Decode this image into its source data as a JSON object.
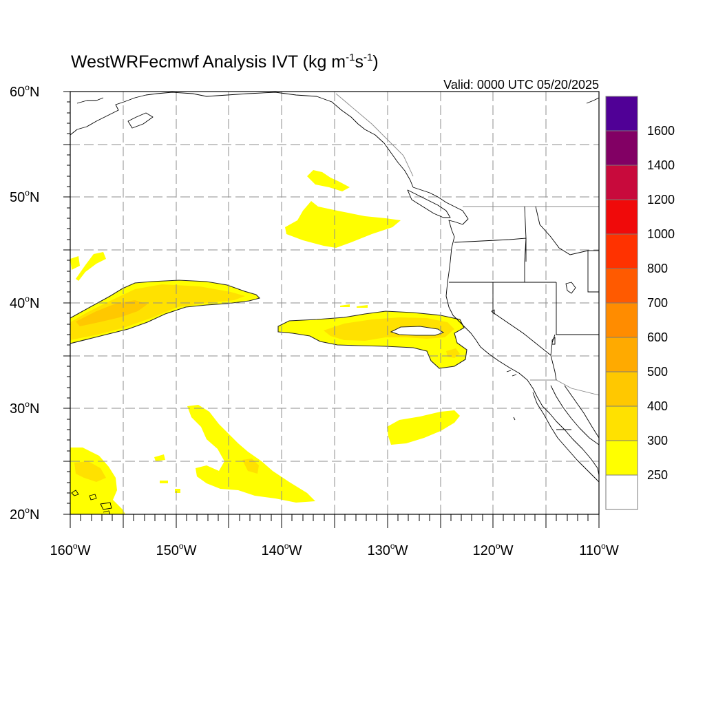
{
  "title": {
    "main": "WestWRFecmwf Analysis IVT (kg m",
    "sup1": "-1",
    "mid": "s",
    "sup2": "-1",
    "end": ")"
  },
  "valid_label": "Valid: 0000 UTC 05/20/2025",
  "map": {
    "lon_range": [
      -160,
      -110
    ],
    "lat_range": [
      20,
      60
    ],
    "grid": true,
    "lon_ticks": [
      {
        "value": -160,
        "label": "160",
        "suffix": "W"
      },
      {
        "value": -150,
        "label": "150",
        "suffix": "W"
      },
      {
        "value": -140,
        "label": "140",
        "suffix": "W"
      },
      {
        "value": -130,
        "label": "130",
        "suffix": "W"
      },
      {
        "value": -120,
        "label": "120",
        "suffix": "W"
      },
      {
        "value": -110,
        "label": "110",
        "suffix": "W"
      }
    ],
    "lat_ticks": [
      {
        "value": 60,
        "label": "60",
        "suffix": "N"
      },
      {
        "value": 50,
        "label": "50",
        "suffix": "N"
      },
      {
        "value": 40,
        "label": "40",
        "suffix": "N"
      },
      {
        "value": 30,
        "label": "30",
        "suffix": "N"
      },
      {
        "value": 20,
        "label": "20",
        "suffix": "N"
      }
    ],
    "degree_symbol": "o"
  },
  "colorbar": {
    "labels": [
      "250",
      "300",
      "400",
      "500",
      "600",
      "700",
      "800",
      "1000",
      "1200",
      "1400",
      "1600"
    ],
    "colors": [
      "#ffffff",
      "#ffff00",
      "#ffe100",
      "#ffc800",
      "#ffaa00",
      "#ff8c00",
      "#ff5a00",
      "#ff3200",
      "#f00a0a",
      "#c80a3c",
      "#820064",
      "#500096"
    ]
  },
  "ivt_regions": [
    {
      "name": "ar-central-pacific",
      "level_colors": [
        "#ffff00",
        "#ffe100"
      ],
      "lat": [
        37.5,
        39.3
      ],
      "lon": [
        -140.4,
        -124.8
      ]
    },
    {
      "name": "ar-west-pacific",
      "level_colors": [
        "#ffff00",
        "#ffe100",
        "#ffc800"
      ],
      "lat": [
        36.2,
        42.2
      ],
      "lon": [
        -160,
        -142.4
      ]
    }
  ]
}
